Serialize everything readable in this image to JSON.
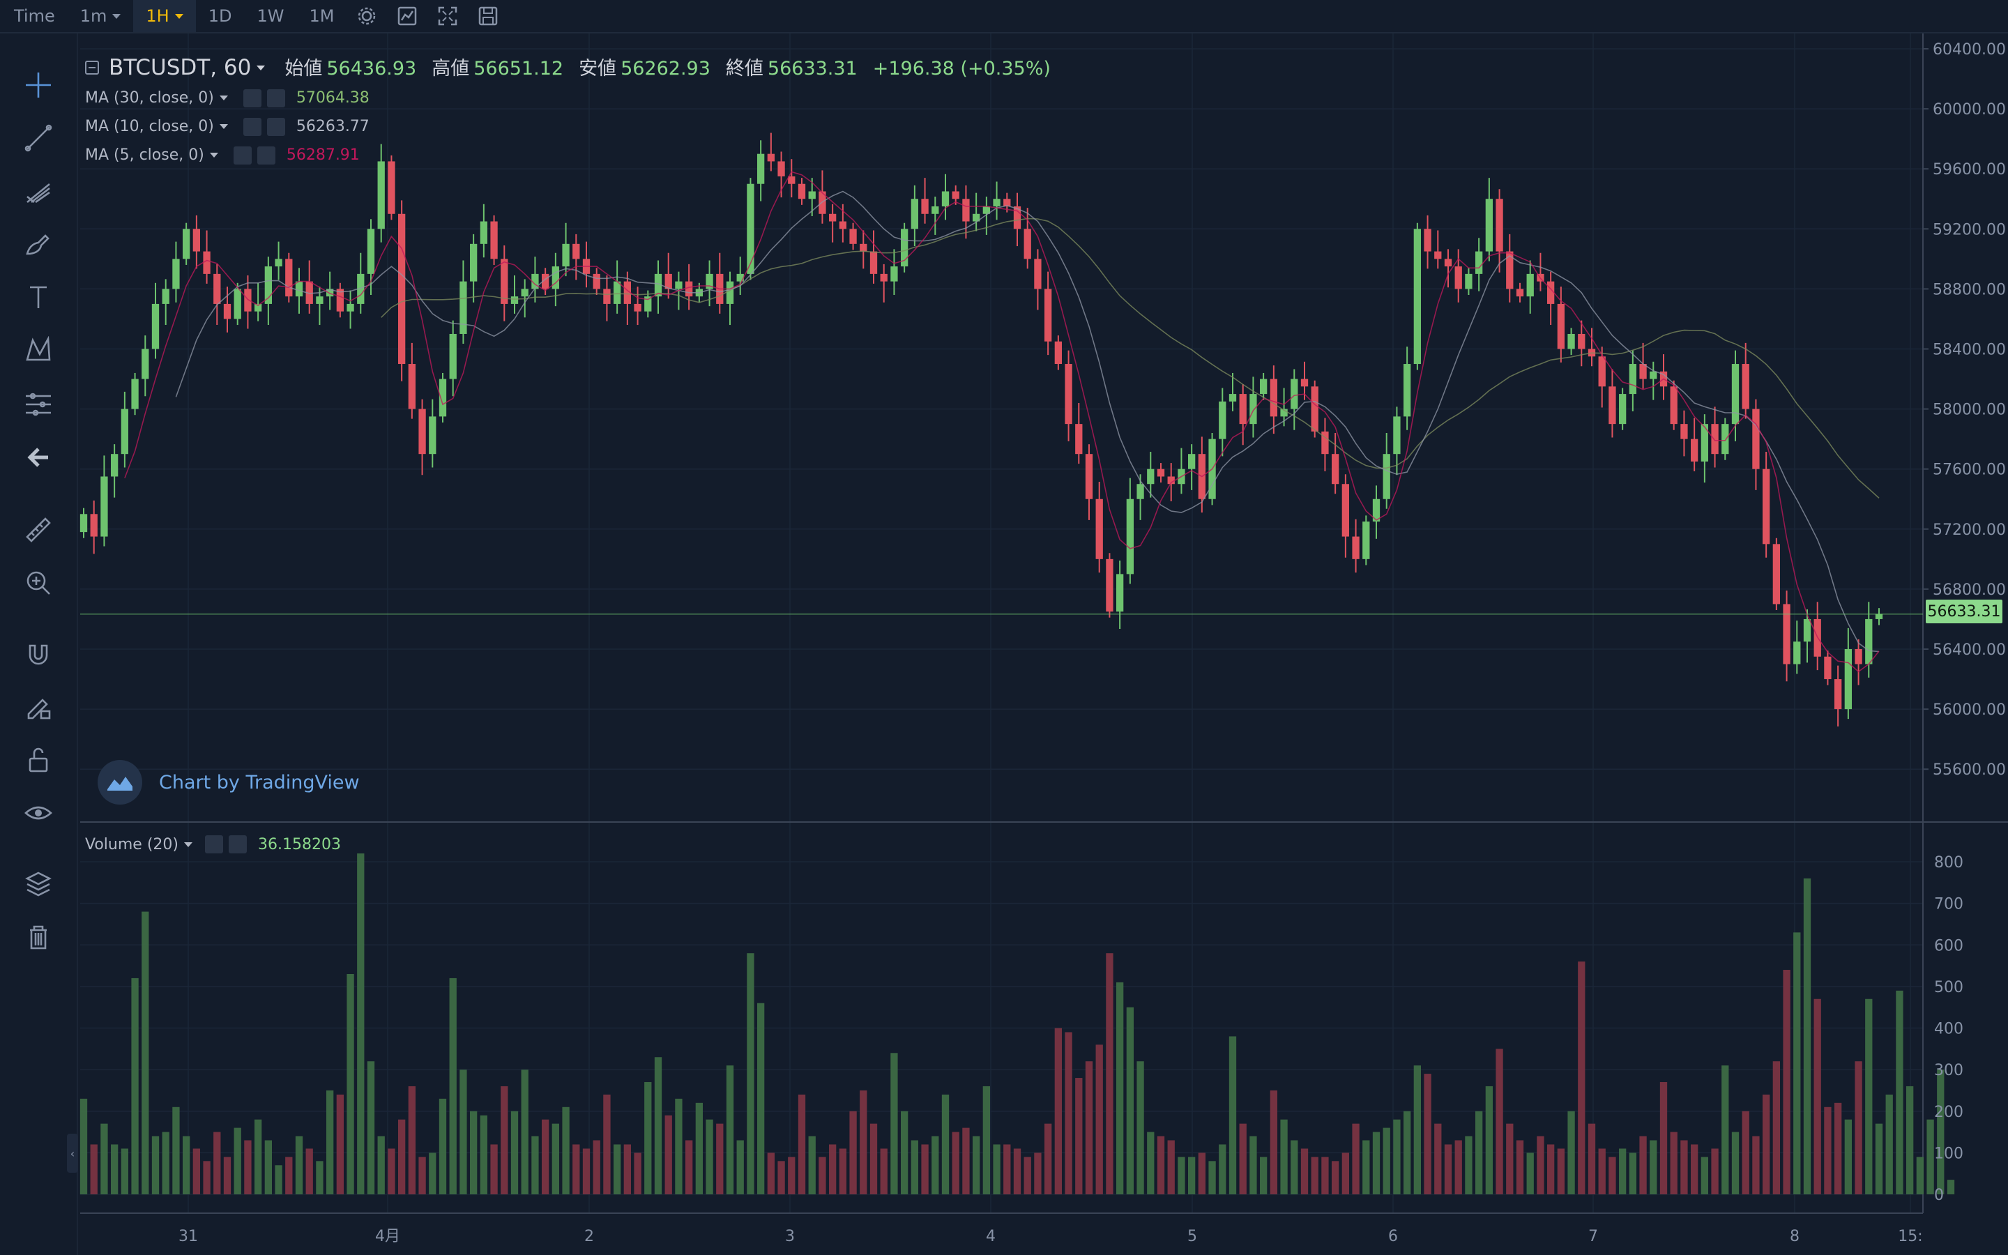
{
  "toolbar": {
    "items": [
      {
        "label": "Time",
        "active": false,
        "dropdown": false
      },
      {
        "label": "1m",
        "active": false,
        "dropdown": true
      },
      {
        "label": "1H",
        "active": true,
        "dropdown": true
      },
      {
        "label": "1D",
        "active": false,
        "dropdown": false
      },
      {
        "label": "1W",
        "active": false,
        "dropdown": false
      },
      {
        "label": "1M",
        "active": false,
        "dropdown": false
      }
    ],
    "icons": [
      "settings-icon",
      "indicators-icon",
      "fullscreen-icon",
      "save-icon"
    ]
  },
  "left_tools": [
    "crosshair-icon",
    "trend-line-icon",
    "pitchfork-icon",
    "brush-icon",
    "text-icon",
    "pattern-icon",
    "fib-icon",
    "back-arrow-icon",
    "ruler-icon",
    "zoom-in-icon",
    "magnet-icon",
    "lock-drawing-icon",
    "unlock-icon",
    "eye-icon",
    "layers-icon",
    "trash-icon"
  ],
  "legend": {
    "symbol": "BTCUSDT, 60",
    "open_label": "始値",
    "open": "56436.93",
    "high_label": "高値",
    "high": "56651.12",
    "low_label": "安値",
    "low": "56262.93",
    "close_label": "終値",
    "close": "56633.31",
    "change": "+196.38 (+0.35%)",
    "ma30": {
      "label": "MA (30, close, 0)",
      "value": "57064.38",
      "color": "#7f8c5f"
    },
    "ma10": {
      "label": "MA (10, close, 0)",
      "value": "56263.77",
      "color": "#a0a6b4"
    },
    "ma5": {
      "label": "MA (5, close, 0)",
      "value": "56287.91",
      "color": "#c2185b"
    }
  },
  "volume_legend": {
    "label": "Volume (20)",
    "value": "36.158203"
  },
  "watermark": "Chart by TradingView",
  "colors": {
    "up": "#6ec36e",
    "down": "#e0535f",
    "background": "#131c2b",
    "last_price_tag": "#8cd98c"
  },
  "chart_data": {
    "type": "candlestick",
    "price_axis": {
      "min": 55200,
      "max": 60400,
      "ticks": [
        60400,
        60000,
        59600,
        59200,
        58800,
        58400,
        58000,
        57600,
        57200,
        56800,
        56400,
        56000,
        55600
      ]
    },
    "price_tick_labels": [
      "60400.00",
      "60000.00",
      "59600.00",
      "59200.00",
      "58800.00",
      "58400.00",
      "58000.00",
      "57600.00",
      "57200.00",
      "56800.00",
      "56400.00",
      "56000.00",
      "55600.00"
    ],
    "last_price": "56633.31",
    "volume_axis": {
      "min": 0,
      "max": 800,
      "ticks": [
        0,
        100,
        200,
        300,
        400,
        500,
        600,
        700,
        800
      ]
    },
    "x_tick_labels": [
      "31",
      "4月",
      "2",
      "3",
      "4",
      "5",
      "6",
      "7",
      "8",
      "15:"
    ],
    "close_series": [
      57300,
      57150,
      57550,
      57700,
      58000,
      58200,
      58400,
      58700,
      58800,
      59000,
      59200,
      59050,
      58900,
      58700,
      58600,
      58800,
      58650,
      58700,
      58950,
      59000,
      58750,
      58850,
      58700,
      58750,
      58800,
      58650,
      58700,
      58900,
      59200,
      59650,
      59300,
      58300,
      58000,
      57700,
      57950,
      58200,
      58500,
      58850,
      59100,
      59250,
      59000,
      58700,
      58750,
      58800,
      58900,
      58800,
      58950,
      59100,
      59000,
      58900,
      58800,
      58700,
      58850,
      58700,
      58650,
      58750,
      58900,
      58800,
      58850,
      58750,
      58800,
      58900,
      58700,
      58850,
      58900,
      59500,
      59700,
      59650,
      59550,
      59500,
      59400,
      59450,
      59300,
      59250,
      59200,
      59100,
      59050,
      58900,
      58850,
      58950,
      59200,
      59400,
      59300,
      59350,
      59450,
      59400,
      59250,
      59300,
      59350,
      59400,
      59350,
      59200,
      59000,
      58800,
      58450,
      58300,
      57900,
      57700,
      57400,
      57000,
      56650,
      56900,
      57400,
      57500,
      57600,
      57550,
      57500,
      57600,
      57700,
      57400,
      57800,
      58050,
      58100,
      57900,
      58100,
      58200,
      57950,
      58000,
      58200,
      58150,
      57850,
      57700,
      57500,
      57150,
      57000,
      57250,
      57400,
      57700,
      57950,
      58300,
      59200,
      59050,
      59000,
      58950,
      58800,
      58900,
      59050,
      59400,
      59050,
      58800,
      58750,
      58900,
      58850,
      58700,
      58400,
      58500,
      58400,
      58350,
      58150,
      57900,
      58100,
      58300,
      58200,
      58250,
      58150,
      57900,
      57800,
      57650,
      57900,
      57700,
      57900,
      58300,
      58000,
      57600,
      57100,
      56700,
      56300,
      56450,
      56600,
      56350,
      56200,
      56000,
      56400,
      56300,
      56600,
      56633.31
    ],
    "volume_series": [
      230,
      120,
      170,
      120,
      110,
      520,
      680,
      140,
      150,
      210,
      140,
      110,
      80,
      150,
      90,
      160,
      130,
      180,
      130,
      70,
      90,
      140,
      110,
      80,
      250,
      240,
      530,
      820,
      320,
      140,
      110,
      180,
      260,
      90,
      100,
      230,
      520,
      300,
      200,
      190,
      120,
      260,
      200,
      300,
      140,
      180,
      170,
      210,
      120,
      110,
      130,
      240,
      120,
      120,
      100,
      270,
      330,
      190,
      230,
      130,
      220,
      180,
      170,
      310,
      130,
      580,
      460,
      100,
      80,
      90,
      240,
      140,
      90,
      120,
      110,
      200,
      250,
      170,
      110,
      340,
      200,
      130,
      120,
      140,
      240,
      150,
      160,
      140,
      260,
      120,
      120,
      110,
      90,
      100,
      170,
      400,
      390,
      280,
      320,
      360,
      580,
      510,
      450,
      320,
      150,
      140,
      130,
      90,
      90,
      100,
      80,
      120,
      380,
      170,
      140,
      90,
      250,
      180,
      130,
      110,
      90,
      90,
      80,
      100,
      170,
      130,
      150,
      160,
      180,
      200,
      310,
      290,
      170,
      120,
      130,
      140,
      200,
      260,
      350,
      170,
      130,
      100,
      140,
      120,
      110,
      200,
      560,
      170,
      110,
      90,
      110,
      100,
      140,
      130,
      270,
      150,
      130,
      120,
      90,
      110,
      310,
      150,
      200,
      140,
      240,
      320,
      540,
      630,
      760,
      470,
      210,
      220,
      180,
      320,
      470,
      170,
      240,
      490,
      260,
      90,
      180,
      300,
      35
    ],
    "volume_colors_follow_candles": true
  }
}
